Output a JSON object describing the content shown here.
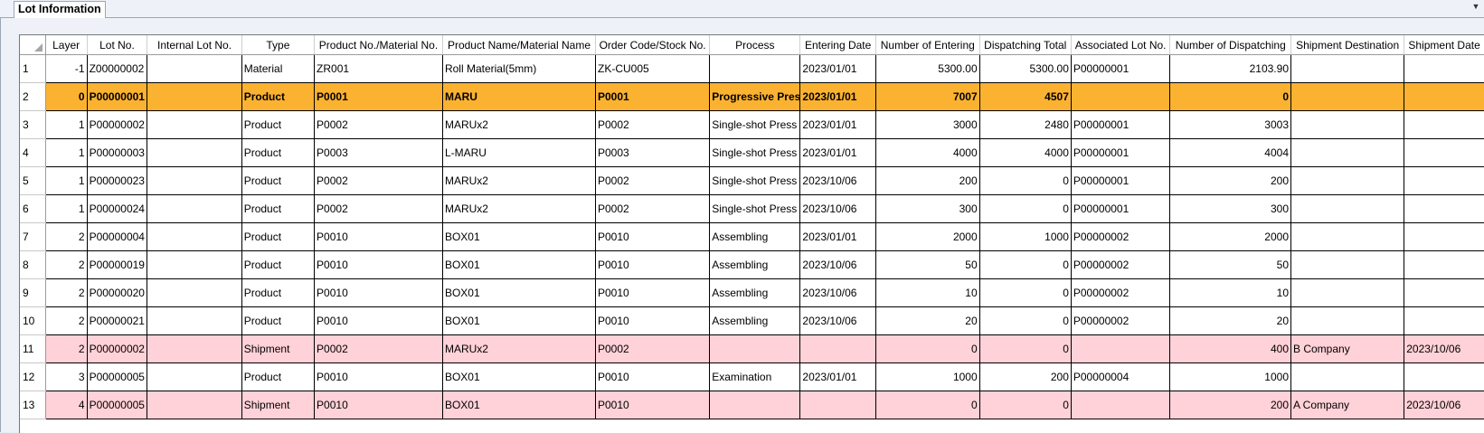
{
  "tab": {
    "title": "Lot Information"
  },
  "grid": {
    "columns": [
      {
        "key": "layer",
        "label": "Layer",
        "align": "right"
      },
      {
        "key": "lot",
        "label": "Lot No.",
        "align": "left"
      },
      {
        "key": "internal",
        "label": "Internal Lot No.",
        "align": "left"
      },
      {
        "key": "type",
        "label": "Type",
        "align": "left"
      },
      {
        "key": "product_no",
        "label": "Product No./Material No.",
        "align": "left"
      },
      {
        "key": "product_name",
        "label": "Product Name/Material Name",
        "align": "left"
      },
      {
        "key": "order_code",
        "label": "Order Code/Stock No.",
        "align": "left"
      },
      {
        "key": "process",
        "label": "Process",
        "align": "left"
      },
      {
        "key": "entering_date",
        "label": "Entering Date",
        "align": "left"
      },
      {
        "key": "num_entering",
        "label": "Number of Entering",
        "align": "right"
      },
      {
        "key": "dispatch_total",
        "label": "Dispatching Total",
        "align": "right"
      },
      {
        "key": "assoc_lot",
        "label": "Associated Lot No.",
        "align": "left"
      },
      {
        "key": "num_dispatch",
        "label": "Number of Dispatching",
        "align": "right"
      },
      {
        "key": "ship_dest",
        "label": "Shipment Destination",
        "align": "left"
      },
      {
        "key": "ship_date",
        "label": "Shipment Date",
        "align": "left"
      }
    ],
    "rows": [
      {
        "num": "1",
        "style": "",
        "cells": [
          "-1",
          "Z00000002",
          "",
          "Material",
          "ZR001",
          "Roll Material(5mm)",
          "ZK-CU005",
          "",
          "2023/01/01",
          "5300.00",
          "5300.00",
          "P00000001",
          "2103.90",
          "",
          ""
        ]
      },
      {
        "num": "2",
        "style": "selected",
        "cells": [
          "0",
          "P00000001",
          "",
          "Product",
          "P0001",
          "MARU",
          "P0001",
          "Progressive Press",
          "2023/01/01",
          "7007",
          "4507",
          "",
          "0",
          "",
          ""
        ]
      },
      {
        "num": "3",
        "style": "",
        "cells": [
          "1",
          "P00000002",
          "",
          "Product",
          "P0002",
          "MARUx2",
          "P0002",
          "Single-shot Press",
          "2023/01/01",
          "3000",
          "2480",
          "P00000001",
          "3003",
          "",
          ""
        ]
      },
      {
        "num": "4",
        "style": "",
        "cells": [
          "1",
          "P00000003",
          "",
          "Product",
          "P0003",
          "L-MARU",
          "P0003",
          "Single-shot Press",
          "2023/01/01",
          "4000",
          "4000",
          "P00000001",
          "4004",
          "",
          ""
        ]
      },
      {
        "num": "5",
        "style": "",
        "cells": [
          "1",
          "P00000023",
          "",
          "Product",
          "P0002",
          "MARUx2",
          "P0002",
          "Single-shot Press",
          "2023/10/06",
          "200",
          "0",
          "P00000001",
          "200",
          "",
          ""
        ]
      },
      {
        "num": "6",
        "style": "",
        "cells": [
          "1",
          "P00000024",
          "",
          "Product",
          "P0002",
          "MARUx2",
          "P0002",
          "Single-shot Press",
          "2023/10/06",
          "300",
          "0",
          "P00000001",
          "300",
          "",
          ""
        ]
      },
      {
        "num": "7",
        "style": "",
        "cells": [
          "2",
          "P00000004",
          "",
          "Product",
          "P0010",
          "BOX01",
          "P0010",
          "Assembling",
          "2023/01/01",
          "2000",
          "1000",
          "P00000002",
          "2000",
          "",
          ""
        ]
      },
      {
        "num": "8",
        "style": "",
        "cells": [
          "2",
          "P00000019",
          "",
          "Product",
          "P0010",
          "BOX01",
          "P0010",
          "Assembling",
          "2023/10/06",
          "50",
          "0",
          "P00000002",
          "50",
          "",
          ""
        ]
      },
      {
        "num": "9",
        "style": "",
        "cells": [
          "2",
          "P00000020",
          "",
          "Product",
          "P0010",
          "BOX01",
          "P0010",
          "Assembling",
          "2023/10/06",
          "10",
          "0",
          "P00000002",
          "10",
          "",
          ""
        ]
      },
      {
        "num": "10",
        "style": "",
        "cells": [
          "2",
          "P00000021",
          "",
          "Product",
          "P0010",
          "BOX01",
          "P0010",
          "Assembling",
          "2023/10/06",
          "20",
          "0",
          "P00000002",
          "20",
          "",
          ""
        ]
      },
      {
        "num": "11",
        "style": "shipment",
        "cells": [
          "2",
          "P00000002",
          "",
          "Shipment",
          "P0002",
          "MARUx2",
          "P0002",
          "",
          "",
          "0",
          "0",
          "",
          "400",
          "B Company",
          "2023/10/06"
        ]
      },
      {
        "num": "12",
        "style": "",
        "cells": [
          "3",
          "P00000005",
          "",
          "Product",
          "P0010",
          "BOX01",
          "P0010",
          "Examination",
          "2023/01/01",
          "1000",
          "200",
          "P00000004",
          "1000",
          "",
          ""
        ]
      },
      {
        "num": "13",
        "style": "shipment",
        "cells": [
          "4",
          "P00000005",
          "",
          "Shipment",
          "P0010",
          "BOX01",
          "P0010",
          "",
          "",
          "0",
          "0",
          "",
          "200",
          "A Company",
          "2023/10/06"
        ]
      }
    ]
  },
  "colors": {
    "selected_row": "#fbb231",
    "shipment_row": "#ffd1d8"
  }
}
